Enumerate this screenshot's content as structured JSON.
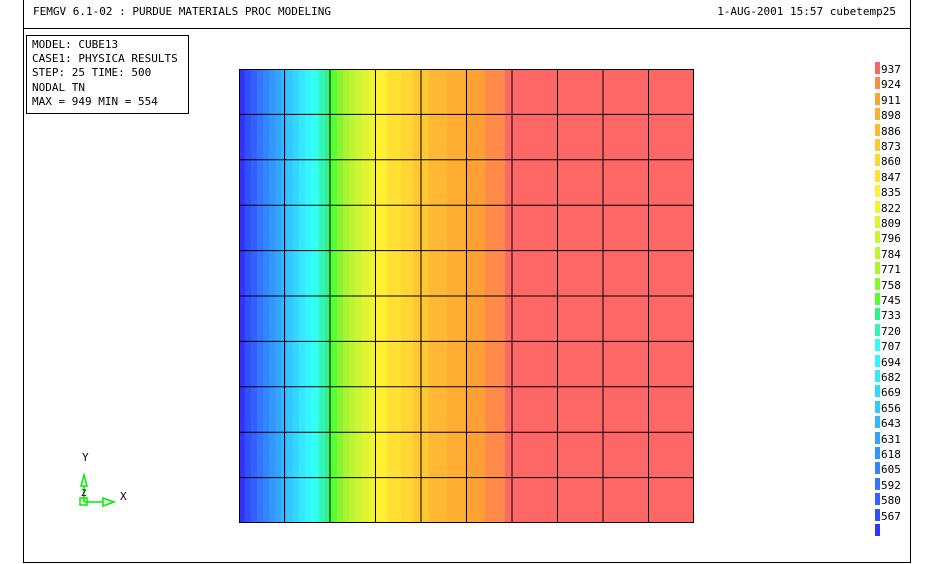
{
  "header": {
    "title": "FEMGV 6.1-02 : PURDUE MATERIALS PROC MODELING",
    "stamp": "1-AUG-2001 15:57 cubetemp25"
  },
  "info": {
    "lines": [
      "MODEL: CUBE13",
      "CASE1: PHYSICA RESULTS",
      "STEP: 25  TIME: 500",
      "NODAL TN",
      "MAX = 949  MIN = 554"
    ]
  },
  "result": {
    "max": 949,
    "min": 554,
    "mesh_columns": 10,
    "mesh_rows": 10
  },
  "legend": {
    "labels": [
      "937",
      "924",
      "911",
      "898",
      "886",
      "873",
      "860",
      "847",
      "835",
      "822",
      "809",
      "796",
      "784",
      "771",
      "758",
      "745",
      "733",
      "720",
      "707",
      "694",
      "682",
      "669",
      "656",
      "643",
      "631",
      "618",
      "605",
      "592",
      "580",
      "567"
    ],
    "colors": [
      "#ff6666",
      "#ff8a4a",
      "#ffa033",
      "#ffad33",
      "#ffb833",
      "#ffc833",
      "#ffd633",
      "#ffe033",
      "#fff033",
      "#eef533",
      "#ddf533",
      "#ccf533",
      "#bbf533",
      "#aaf533",
      "#88f533",
      "#55ff33",
      "#33f08a",
      "#33f5b8",
      "#33fff0",
      "#33f5ff",
      "#33e8ff",
      "#33d8ff",
      "#33c8ff",
      "#33b5ff",
      "#33a5ff",
      "#3395ff",
      "#3385ff",
      "#3375ff",
      "#3360ff",
      "#3350ff",
      "#3333ff"
    ]
  },
  "axes": {
    "x": "X",
    "y": "Y",
    "z": "Z",
    "color": "#00ee00"
  }
}
